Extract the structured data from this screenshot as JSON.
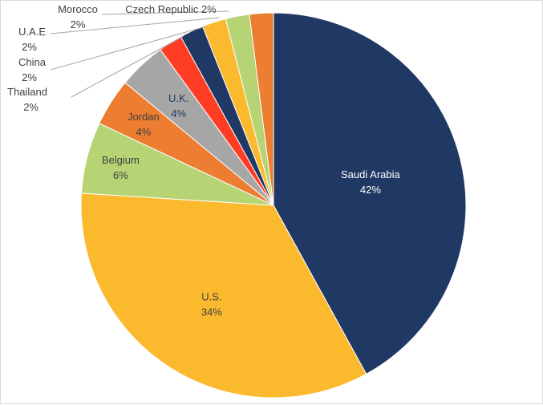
{
  "chart_data": {
    "type": "pie",
    "title": "",
    "start": "12 o'clock",
    "direction": "clockwise",
    "slices": [
      {
        "label": "Saudi Arabia",
        "value": 42,
        "display": "42%",
        "color": "#203864",
        "label_color": "#ffffff"
      },
      {
        "label": "U.S.",
        "value": 34,
        "display": "34%",
        "color": "#FBB92E",
        "label_color": "#404040"
      },
      {
        "label": "Belgium",
        "value": 6,
        "display": "6%",
        "color": "#B6D474",
        "label_color": "#404040"
      },
      {
        "label": "Jordan",
        "value": 4,
        "display": "4%",
        "color": "#ED7D31",
        "label_color": "#404040"
      },
      {
        "label": "U.K.",
        "value": 4,
        "display": "4%",
        "color": "#A6A6A6",
        "label_color": "#203864"
      },
      {
        "label": "Thailand",
        "value": 2,
        "display": "2%",
        "color": "#FF3D24",
        "label_color": "#404040"
      },
      {
        "label": "China",
        "value": 2,
        "display": "2%",
        "color": "#203864",
        "label_color": "#404040"
      },
      {
        "label": "U.A.E",
        "value": 2,
        "display": "2%",
        "color": "#FBB92E",
        "label_color": "#404040"
      },
      {
        "label": "Morocco",
        "value": 2,
        "display": "2%",
        "color": "#B6D474",
        "label_color": "#404040"
      },
      {
        "label": "Czech Republic",
        "value": 2,
        "display": "2%",
        "color": "#ED7D31",
        "label_color": "#404040"
      }
    ]
  }
}
